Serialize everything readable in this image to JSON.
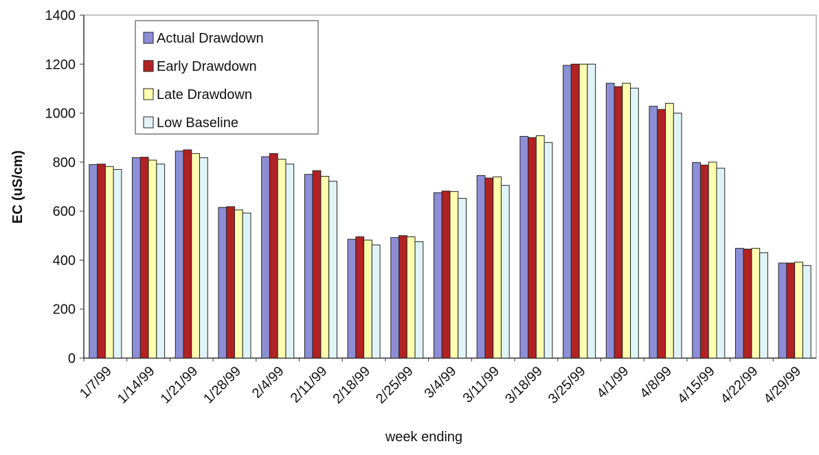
{
  "chart_data": {
    "type": "bar",
    "y_label": "EC (uS/cm)",
    "x_label": "week ending",
    "categories": [
      "1/7/99",
      "1/14/99",
      "1/21/99",
      "1/28/99",
      "2/4/99",
      "2/11/99",
      "2/18/99",
      "2/25/99",
      "3/4/99",
      "3/11/99",
      "3/18/99",
      "3/25/99",
      "4/1/99",
      "4/8/99",
      "4/15/99",
      "4/22/99",
      "4/29/99"
    ],
    "series": [
      {
        "name": "Actual Drawdown",
        "color": "#8c8fd6",
        "values": [
          790,
          818,
          845,
          615,
          822,
          750,
          485,
          492,
          675,
          745,
          905,
          1195,
          1122,
          1028,
          798,
          448,
          388
        ]
      },
      {
        "name": "Early Drawdown",
        "color": "#b22222",
        "values": [
          792,
          820,
          850,
          618,
          835,
          765,
          495,
          500,
          682,
          735,
          900,
          1200,
          1108,
          1015,
          788,
          445,
          388
        ]
      },
      {
        "name": "Late Drawdown",
        "color": "#ffffb0",
        "values": [
          782,
          808,
          835,
          605,
          812,
          742,
          482,
          495,
          680,
          740,
          908,
          1200,
          1122,
          1040,
          800,
          448,
          392
        ]
      },
      {
        "name": "Low Baseline",
        "color": "#e0f4f8",
        "values": [
          770,
          792,
          818,
          592,
          792,
          722,
          462,
          475,
          652,
          705,
          880,
          1200,
          1102,
          1000,
          775,
          430,
          378
        ]
      }
    ],
    "ylim": [
      0,
      1400
    ],
    "yticks": [
      0,
      200,
      400,
      600,
      800,
      1000,
      1200,
      1400
    ],
    "grid": false,
    "legend": "upper left"
  }
}
